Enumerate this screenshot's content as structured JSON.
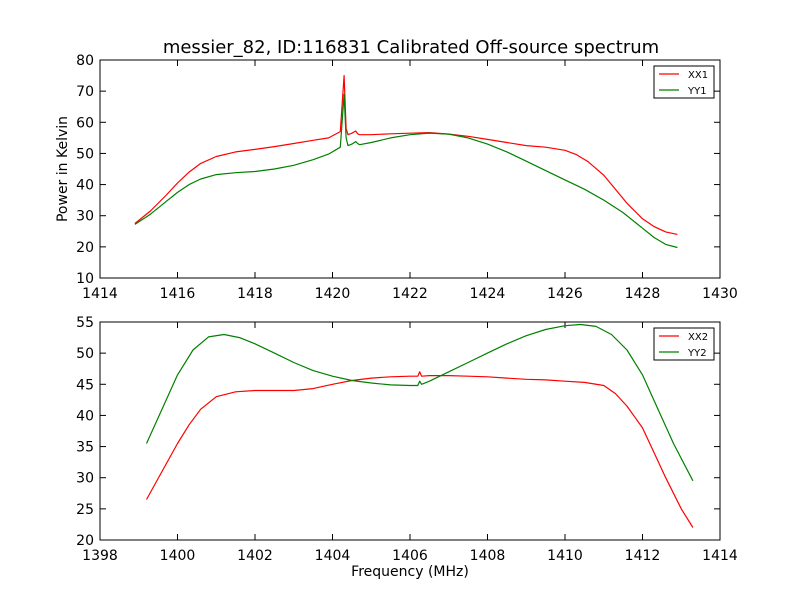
{
  "chart_data": [
    {
      "type": "line",
      "title": "messier_82, ID:116831 Calibrated Off-source spectrum",
      "xlabel": "",
      "ylabel": "Power in Kelvin",
      "xlim": [
        1414,
        1430
      ],
      "ylim": [
        10,
        80
      ],
      "xticks": [
        1414,
        1416,
        1418,
        1420,
        1422,
        1424,
        1426,
        1428,
        1430
      ],
      "yticks": [
        10,
        20,
        30,
        40,
        50,
        60,
        70,
        80
      ],
      "grid": false,
      "legend_position": "top-right",
      "series": [
        {
          "name": "XX1",
          "color": "#ff0000",
          "x": [
            1414.9,
            1415.3,
            1415.7,
            1416.0,
            1416.3,
            1416.6,
            1417.0,
            1417.5,
            1418.0,
            1418.5,
            1419.0,
            1419.5,
            1419.9,
            1420.2,
            1420.3,
            1420.35,
            1420.4,
            1420.5,
            1420.6,
            1420.65,
            1420.7,
            1421.0,
            1421.5,
            1422.0,
            1422.5,
            1423.0,
            1423.5,
            1424.0,
            1424.5,
            1425.0,
            1425.5,
            1426.0,
            1426.3,
            1426.6,
            1427.0,
            1427.3,
            1427.6,
            1428.0,
            1428.3,
            1428.6,
            1428.9
          ],
          "y": [
            27.5,
            31.5,
            36.5,
            40.5,
            44.0,
            46.8,
            49.0,
            50.5,
            51.3,
            52.2,
            53.2,
            54.2,
            55.0,
            57.0,
            75.0,
            58.0,
            56.0,
            56.5,
            57.2,
            56.3,
            56.0,
            56.0,
            56.3,
            56.5,
            56.7,
            56.2,
            55.5,
            54.5,
            53.5,
            52.5,
            52.0,
            51.0,
            49.6,
            47.3,
            43.0,
            38.5,
            34.0,
            29.0,
            26.5,
            24.8,
            24.0
          ]
        },
        {
          "name": "YY1",
          "color": "#008000",
          "x": [
            1414.9,
            1415.3,
            1415.7,
            1416.0,
            1416.3,
            1416.6,
            1417.0,
            1417.5,
            1418.0,
            1418.5,
            1419.0,
            1419.5,
            1419.9,
            1420.2,
            1420.3,
            1420.35,
            1420.4,
            1420.5,
            1420.6,
            1420.65,
            1420.7,
            1421.0,
            1421.5,
            1422.0,
            1422.5,
            1423.0,
            1423.5,
            1424.0,
            1424.5,
            1425.0,
            1425.5,
            1426.0,
            1426.5,
            1427.0,
            1427.5,
            1428.0,
            1428.3,
            1428.6,
            1428.9
          ],
          "y": [
            27.2,
            30.5,
            34.5,
            37.5,
            40.0,
            41.8,
            43.2,
            43.8,
            44.2,
            45.0,
            46.2,
            48.0,
            49.8,
            52.0,
            69.0,
            55.0,
            52.5,
            53.0,
            53.8,
            53.2,
            52.8,
            53.5,
            55.0,
            56.0,
            56.5,
            56.2,
            55.0,
            53.0,
            50.5,
            47.5,
            44.5,
            41.5,
            38.5,
            35.0,
            31.0,
            26.0,
            23.0,
            20.8,
            19.8
          ]
        }
      ]
    },
    {
      "type": "line",
      "title": "",
      "xlabel": "Frequency (MHz)",
      "ylabel": "",
      "xlim": [
        1398,
        1414
      ],
      "ylim": [
        20,
        55
      ],
      "xticks": [
        1398,
        1400,
        1402,
        1404,
        1406,
        1408,
        1410,
        1412,
        1414
      ],
      "yticks": [
        20,
        25,
        30,
        35,
        40,
        45,
        50,
        55
      ],
      "grid": false,
      "legend_position": "top-right",
      "series": [
        {
          "name": "XX2",
          "color": "#ff0000",
          "x": [
            1399.2,
            1399.6,
            1400.0,
            1400.3,
            1400.6,
            1401.0,
            1401.5,
            1402.0,
            1402.5,
            1403.0,
            1403.5,
            1404.0,
            1404.5,
            1405.0,
            1405.5,
            1406.0,
            1406.2,
            1406.25,
            1406.3,
            1406.5,
            1407.0,
            1407.5,
            1408.0,
            1408.5,
            1409.0,
            1409.5,
            1410.0,
            1410.5,
            1411.0,
            1411.3,
            1411.6,
            1412.0,
            1412.3,
            1412.6,
            1413.0,
            1413.3
          ],
          "y": [
            26.5,
            31.0,
            35.5,
            38.5,
            41.0,
            43.0,
            43.8,
            44.0,
            44.0,
            44.0,
            44.3,
            45.0,
            45.6,
            46.0,
            46.2,
            46.3,
            46.3,
            47.0,
            46.3,
            46.4,
            46.4,
            46.3,
            46.2,
            46.0,
            45.8,
            45.7,
            45.5,
            45.3,
            44.8,
            43.5,
            41.5,
            38.0,
            34.0,
            30.0,
            25.0,
            22.0
          ]
        },
        {
          "name": "YY2",
          "color": "#008000",
          "x": [
            1399.2,
            1399.6,
            1400.0,
            1400.4,
            1400.8,
            1401.2,
            1401.6,
            1402.0,
            1402.5,
            1403.0,
            1403.5,
            1404.0,
            1404.5,
            1405.0,
            1405.5,
            1406.0,
            1406.2,
            1406.25,
            1406.3,
            1406.5,
            1407.0,
            1407.5,
            1408.0,
            1408.5,
            1409.0,
            1409.5,
            1410.0,
            1410.4,
            1410.8,
            1411.2,
            1411.6,
            1412.0,
            1412.4,
            1412.8,
            1413.3
          ],
          "y": [
            35.5,
            41.0,
            46.5,
            50.5,
            52.6,
            53.0,
            52.5,
            51.5,
            50.0,
            48.5,
            47.2,
            46.3,
            45.6,
            45.2,
            44.9,
            44.8,
            44.8,
            45.5,
            45.0,
            45.5,
            47.0,
            48.5,
            50.0,
            51.5,
            52.8,
            53.8,
            54.4,
            54.6,
            54.3,
            53.0,
            50.5,
            46.5,
            41.0,
            35.5,
            29.5
          ]
        }
      ]
    }
  ]
}
